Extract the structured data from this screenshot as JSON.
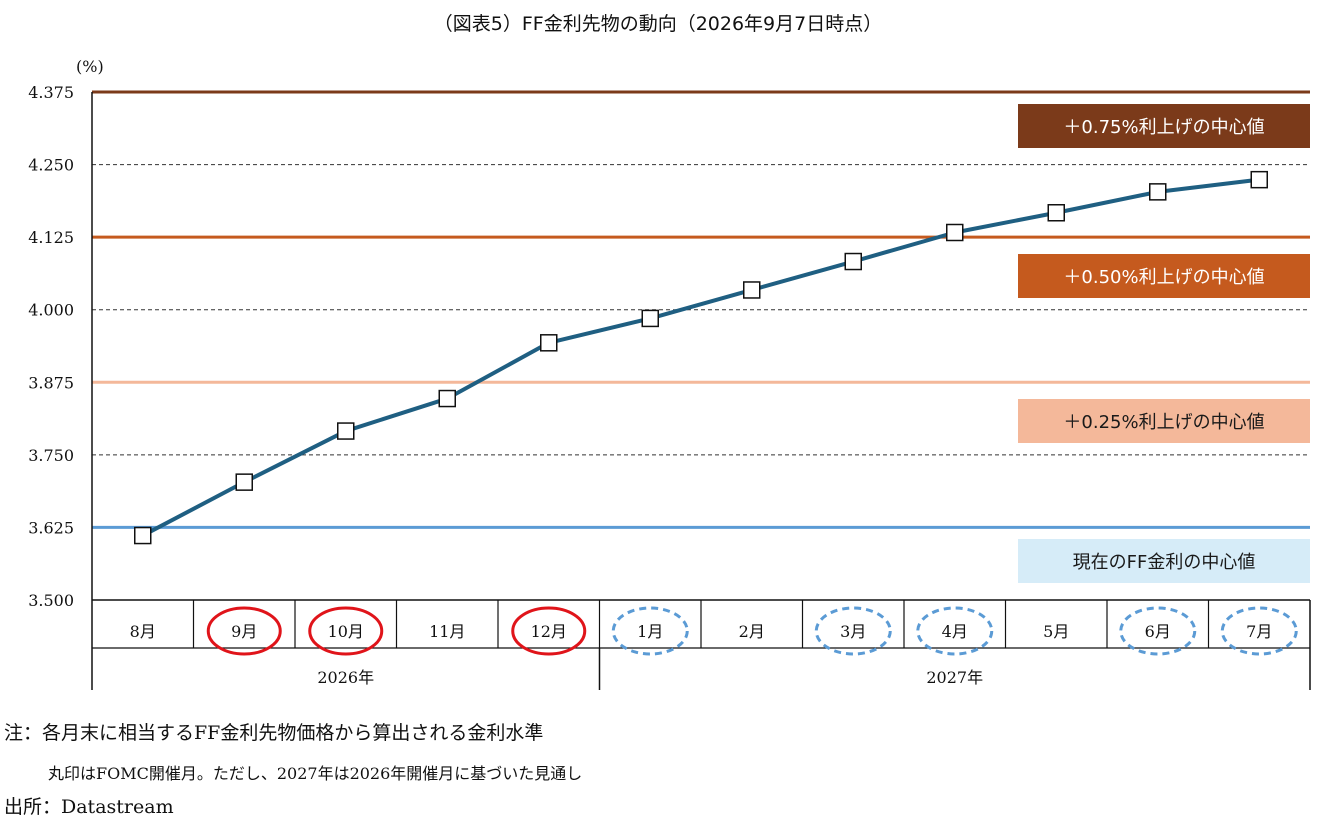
{
  "chart_data": {
    "type": "line",
    "title": "（図表5）FF金利先物の動向（2026年9月7日時点）",
    "ylabel": "(%)",
    "ylim": [
      3.5,
      4.375
    ],
    "yticks": [
      "4.375",
      "4.250",
      "4.125",
      "4.000",
      "3.875",
      "3.750",
      "3.625",
      "3.500"
    ],
    "grid": true,
    "categories": [
      "8月",
      "9月",
      "10月",
      "11月",
      "12月",
      "1月",
      "2月",
      "3月",
      "4月",
      "5月",
      "6月",
      "7月"
    ],
    "years": [
      {
        "label": "2026年",
        "span": 5
      },
      {
        "label": "2027年",
        "span": 7
      }
    ],
    "fomc_marks": [
      "none",
      "solid",
      "solid",
      "none",
      "solid",
      "dashed",
      "none",
      "dashed",
      "dashed",
      "none",
      "dashed",
      "dashed"
    ],
    "series": [
      {
        "values": [
          3.611,
          3.703,
          3.791,
          3.847,
          3.943,
          3.985,
          4.034,
          4.083,
          4.133,
          4.167,
          4.203,
          4.224
        ],
        "color": "#1f5f82"
      }
    ],
    "reference_lines": [
      {
        "value": 4.375,
        "label": "＋0.75%利上げの中心値",
        "color": "#7b3a1a",
        "text_color": "#ffffff"
      },
      {
        "value": 4.125,
        "label": "＋0.50%利上げの中心値",
        "color": "#c55a1e",
        "text_color": "#ffffff"
      },
      {
        "value": 3.875,
        "label": "＋0.25%利上げの中心値",
        "color": "#f4b89a",
        "text_color": "#1a1a1a"
      },
      {
        "value": 3.625,
        "label": "現在のFF金利の中心値",
        "color": "#5b9bd5",
        "box_color": "#d6ecf8",
        "text_color": "#1a1a1a"
      }
    ]
  },
  "notes": {
    "line1": "注：各月末に相当するFF金利先物価格から算出される金利水準",
    "line2": "丸印はFOMC開催月。ただし、2027年は2026年開催月に基づいた見通し",
    "line3": "出所：Datastream"
  },
  "colors": {
    "fomc_solid": "#e0141a",
    "fomc_dashed": "#5b9bd5",
    "grid": "#333333"
  }
}
